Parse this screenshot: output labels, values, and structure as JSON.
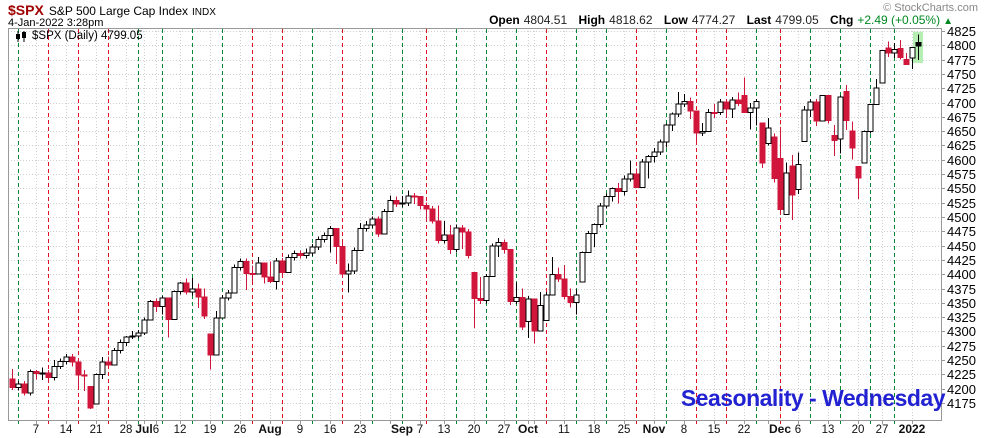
{
  "header": {
    "symbol": "$SPX",
    "title": "S&P 500 Large Cap Index",
    "exchange": "INDX",
    "datetime": "4-Jan-2022 3:28pm",
    "copyright": "© StockCharts.com",
    "quote": {
      "open_label": "Open",
      "open": "4804.51",
      "high_label": "High",
      "high": "4818.62",
      "low_label": "Low",
      "low": "4774.27",
      "last_label": "Last",
      "last": "4799.05",
      "chg_label": "Chg",
      "chg": "+2.49 (+0.05%)",
      "chg_arrow": "▲"
    }
  },
  "legend": {
    "text": "$SPX (Daily) 4799.05"
  },
  "annotation": {
    "text": "Seasonality - Wednesday"
  },
  "colors": {
    "candle_up": "#000000",
    "candle_down": "#d0173b",
    "wed_green": "#008833",
    "wed_red": "#e01022",
    "highlight": "#b6efb4",
    "grid": "#cfcfcf",
    "frame": "#999999",
    "annotation_blue": "#2222d2",
    "chg_green": "#008822",
    "symbol_red": "#a00000"
  },
  "y_axis": {
    "min": 4175,
    "max": 4825,
    "step": 25,
    "labels": [
      "4825",
      "4800",
      "4775",
      "4750",
      "4725",
      "4700",
      "4675",
      "4650",
      "4625",
      "4600",
      "4575",
      "4550",
      "4525",
      "4500",
      "4475",
      "4450",
      "4425",
      "4400",
      "4375",
      "4350",
      "4325",
      "4300",
      "4275",
      "4250",
      "4225",
      "4200",
      "4175"
    ]
  },
  "x_axis": {
    "labels": [
      {
        "t": "7",
        "i": 4
      },
      {
        "t": "14",
        "i": 9
      },
      {
        "t": "21",
        "i": 14
      },
      {
        "t": "28",
        "i": 19
      },
      {
        "t": "Jul",
        "i": 22,
        "b": 1
      },
      {
        "t": "6",
        "i": 24
      },
      {
        "t": "12",
        "i": 28
      },
      {
        "t": "19",
        "i": 33
      },
      {
        "t": "26",
        "i": 38
      },
      {
        "t": "Aug",
        "i": 43,
        "b": 1
      },
      {
        "t": "9",
        "i": 48
      },
      {
        "t": "16",
        "i": 53
      },
      {
        "t": "23",
        "i": 58
      },
      {
        "t": "Sep",
        "i": 65,
        "b": 1
      },
      {
        "t": "7",
        "i": 68
      },
      {
        "t": "13",
        "i": 72
      },
      {
        "t": "20",
        "i": 77
      },
      {
        "t": "27",
        "i": 82
      },
      {
        "t": "Oct",
        "i": 86,
        "b": 1
      },
      {
        "t": "11",
        "i": 92
      },
      {
        "t": "18",
        "i": 97
      },
      {
        "t": "25",
        "i": 102
      },
      {
        "t": "Nov",
        "i": 107,
        "b": 1
      },
      {
        "t": "8",
        "i": 112
      },
      {
        "t": "15",
        "i": 117
      },
      {
        "t": "22",
        "i": 122
      },
      {
        "t": "Dec",
        "i": 128,
        "b": 1
      },
      {
        "t": "6",
        "i": 131
      },
      {
        "t": "13",
        "i": 136
      },
      {
        "t": "20",
        "i": 141
      },
      {
        "t": "27",
        "i": 145
      },
      {
        "t": "2022",
        "i": 150,
        "b": 1
      }
    ]
  },
  "chart_data": {
    "type": "candlestick",
    "symbol": "$SPX",
    "period": "Daily",
    "last": 4799.05,
    "ylim": [
      4145,
      4832
    ],
    "week_gridlines": [
      4,
      9,
      14,
      19,
      22,
      24,
      28,
      33,
      38,
      43,
      48,
      53,
      58,
      63,
      65,
      68,
      72,
      77,
      82,
      86,
      87,
      92,
      97,
      102,
      107,
      112,
      117,
      122,
      126,
      128,
      131,
      136,
      141,
      145,
      150
    ],
    "wednesday_lines": [
      [
        1,
        "g"
      ],
      [
        6,
        "r"
      ],
      [
        11,
        "r"
      ],
      [
        16,
        "r"
      ],
      [
        21,
        "g"
      ],
      [
        25,
        "g"
      ],
      [
        30,
        "g"
      ],
      [
        35,
        "g"
      ],
      [
        40,
        "r"
      ],
      [
        45,
        "r"
      ],
      [
        50,
        "g"
      ],
      [
        55,
        "r"
      ],
      [
        60,
        "g"
      ],
      [
        65,
        "g"
      ],
      [
        69,
        "r"
      ],
      [
        74,
        "g"
      ],
      [
        79,
        "g"
      ],
      [
        84,
        "g"
      ],
      [
        89,
        "r"
      ],
      [
        94,
        "g"
      ],
      [
        99,
        "g"
      ],
      [
        104,
        "r"
      ],
      [
        109,
        "g"
      ],
      [
        114,
        "r"
      ],
      [
        119,
        "r"
      ],
      [
        124,
        "g"
      ],
      [
        128,
        "r"
      ],
      [
        133,
        "g"
      ],
      [
        138,
        "g"
      ],
      [
        143,
        "g"
      ],
      [
        147,
        "g"
      ]
    ],
    "ohlc": [
      [
        "Jun 1",
        4216.5,
        4234.1,
        4197.6,
        4202.0
      ],
      [
        "Jun 2",
        4202.0,
        4213.1,
        4197.0,
        4208.1
      ],
      [
        "Jun 3",
        4208.1,
        4213.1,
        4187.9,
        4192.9
      ],
      [
        "Jun 4",
        4192.9,
        4233.5,
        4187.9,
        4229.9
      ],
      [
        "Jun 7",
        4229.9,
        4232.3,
        4215.7,
        4226.5
      ],
      [
        "Jun 8",
        4226.5,
        4236.7,
        4215.0,
        4227.3
      ],
      [
        "Jun 9",
        4227.3,
        4232.3,
        4214.6,
        4219.6
      ],
      [
        "Jun 10",
        4219.6,
        4249.7,
        4214.6,
        4239.2
      ],
      [
        "Jun 11",
        4239.2,
        4252.4,
        4234.2,
        4247.4
      ],
      [
        "Jun 14",
        4247.4,
        4260.2,
        4242.4,
        4255.2
      ],
      [
        "Jun 15",
        4255.2,
        4260.2,
        4238.4,
        4246.6
      ],
      [
        "Jun 16",
        4246.6,
        4251.9,
        4202.5,
        4223.7
      ],
      [
        "Jun 17",
        4223.7,
        4232.3,
        4196.1,
        4221.9
      ],
      [
        "Jun 18",
        4204.0,
        4204.0,
        4164.4,
        4166.5
      ],
      [
        "Jun 21",
        4173.0,
        4226.2,
        4173.0,
        4224.8
      ],
      [
        "Jun 22",
        4224.8,
        4255.8,
        4217.3,
        4246.4
      ],
      [
        "Jun 23",
        4246.4,
        4256.6,
        4241.4,
        4241.8
      ],
      [
        "Jun 24",
        4241.8,
        4271.3,
        4241.8,
        4266.5
      ],
      [
        "Jun 25",
        4266.5,
        4286.1,
        4261.5,
        4280.7
      ],
      [
        "Jun 28",
        4280.7,
        4292.1,
        4274.7,
        4290.6
      ],
      [
        "Jun 29",
        4290.6,
        4300.5,
        4287.0,
        4291.8
      ],
      [
        "Jun 30",
        4291.8,
        4302.4,
        4287.9,
        4297.5
      ],
      [
        "Jul 1",
        4297.5,
        4324.0,
        4293.6,
        4319.9
      ],
      [
        "Jul 2",
        4319.9,
        4355.4,
        4319.9,
        4352.3
      ],
      [
        "Jul 6",
        4352.3,
        4357.3,
        4334.0,
        4343.5
      ],
      [
        "Jul 7",
        4343.5,
        4361.9,
        4329.8,
        4358.1
      ],
      [
        "Jul 8",
        4358.1,
        4358.1,
        4289.4,
        4320.8
      ],
      [
        "Jul 9",
        4320.8,
        4371.6,
        4320.8,
        4369.6
      ],
      [
        "Jul 12",
        4369.6,
        4386.7,
        4364.6,
        4384.6
      ],
      [
        "Jul 13",
        4384.6,
        4392.4,
        4364.2,
        4369.2
      ],
      [
        "Jul 14",
        4369.2,
        4393.7,
        4362.5,
        4374.3
      ],
      [
        "Jul 15",
        4374.3,
        4383.4,
        4340.7,
        4360.0
      ],
      [
        "Jul 16",
        4360.0,
        4375.1,
        4322.2,
        4327.2
      ],
      [
        "Jul 19",
        4296.0,
        4296.0,
        4233.1,
        4258.5
      ],
      [
        "Jul 20",
        4258.5,
        4335.7,
        4258.5,
        4323.1
      ],
      [
        "Jul 21",
        4323.1,
        4363.7,
        4323.1,
        4358.7
      ],
      [
        "Jul 22",
        4358.7,
        4372.5,
        4353.7,
        4367.5
      ],
      [
        "Jul 23",
        4367.5,
        4416.8,
        4367.5,
        4411.8
      ],
      [
        "Jul 26",
        4411.8,
        4427.3,
        4406.8,
        4422.3
      ],
      [
        "Jul 27",
        4422.3,
        4427.3,
        4372.5,
        4401.5
      ],
      [
        "Jul 28",
        4401.5,
        4415.5,
        4387.0,
        4400.6
      ],
      [
        "Jul 29",
        4400.6,
        4429.8,
        4400.6,
        4419.2
      ],
      [
        "Jul 30",
        4419.2,
        4419.2,
        4383.5,
        4395.3
      ],
      [
        "Aug 2",
        4395.3,
        4422.2,
        4384.8,
        4387.2
      ],
      [
        "Aug 3",
        4387.2,
        4428.2,
        4373.0,
        4423.2
      ],
      [
        "Aug 4",
        4423.2,
        4428.2,
        4397.7,
        4402.7
      ],
      [
        "Aug 5",
        4402.7,
        4434.1,
        4402.7,
        4429.1
      ],
      [
        "Aug 6",
        4429.1,
        4441.5,
        4424.1,
        4436.5
      ],
      [
        "Aug 9",
        4436.5,
        4441.5,
        4427.4,
        4432.4
      ],
      [
        "Aug 10",
        4432.4,
        4445.2,
        4427.4,
        4436.8
      ],
      [
        "Aug 11",
        4436.8,
        4452.7,
        4431.8,
        4447.7
      ],
      [
        "Aug 12",
        4447.7,
        4465.8,
        4442.7,
        4460.8
      ],
      [
        "Aug 13",
        4460.8,
        4473.0,
        4455.8,
        4468.0
      ],
      [
        "Aug 16",
        4468.0,
        4484.7,
        4437.7,
        4479.7
      ],
      [
        "Aug 17",
        4479.7,
        4479.7,
        4417.6,
        4448.1
      ],
      [
        "Aug 18",
        4448.1,
        4454.3,
        4395.3,
        4400.3
      ],
      [
        "Aug 19",
        4400.3,
        4418.6,
        4367.7,
        4405.8
      ],
      [
        "Aug 20",
        4405.8,
        4446.7,
        4400.8,
        4441.7
      ],
      [
        "Aug 23",
        4441.7,
        4489.9,
        4441.7,
        4479.5
      ],
      [
        "Aug 24",
        4479.5,
        4492.8,
        4474.5,
        4486.2
      ],
      [
        "Aug 25",
        4486.2,
        4501.2,
        4481.2,
        4496.2
      ],
      [
        "Aug 26",
        4496.2,
        4501.2,
        4465.0,
        4470.0
      ],
      [
        "Aug 27",
        4470.0,
        4514.4,
        4470.0,
        4509.4
      ],
      [
        "Aug 30",
        4509.4,
        4537.4,
        4509.4,
        4528.8
      ],
      [
        "Aug 31",
        4528.8,
        4535.9,
        4517.7,
        4522.7
      ],
      [
        "Sep 1",
        4522.7,
        4537.1,
        4517.7,
        4524.1
      ],
      [
        "Sep 2",
        4524.1,
        4545.9,
        4519.1,
        4537.0
      ],
      [
        "Sep 3",
        4537.0,
        4542.0,
        4522.4,
        4535.4
      ],
      [
        "Sep 7",
        4535.4,
        4535.4,
        4513.0,
        4520.0
      ],
      [
        "Sep 8",
        4520.0,
        4525.0,
        4493.9,
        4514.1
      ],
      [
        "Sep 9",
        4514.1,
        4519.1,
        4488.3,
        4493.3
      ],
      [
        "Sep 10",
        4493.3,
        4520.5,
        4453.6,
        4458.6
      ],
      [
        "Sep 13",
        4458.6,
        4492.9,
        4453.6,
        4468.7
      ],
      [
        "Sep 14",
        4468.7,
        4485.7,
        4435.5,
        4443.1
      ],
      [
        "Sep 15",
        4443.1,
        4486.9,
        4438.1,
        4480.7
      ],
      [
        "Sep 16",
        4480.7,
        4485.7,
        4443.8,
        4473.8
      ],
      [
        "Sep 17",
        4473.8,
        4478.8,
        4427.8,
        4433.0
      ],
      [
        "Sep 20",
        4403.0,
        4403.0,
        4305.9,
        4357.7
      ],
      [
        "Sep 21",
        4357.7,
        4394.8,
        4347.8,
        4354.2
      ],
      [
        "Sep 22",
        4354.2,
        4400.6,
        4349.2,
        4395.6
      ],
      [
        "Sep 23",
        4395.6,
        4454.0,
        4395.6,
        4449.0
      ],
      [
        "Sep 24",
        4449.0,
        4463.1,
        4430.3,
        4455.5
      ],
      [
        "Sep 27",
        4455.5,
        4460.5,
        4436.2,
        4443.1
      ],
      [
        "Sep 28",
        4443.1,
        4443.1,
        4346.3,
        4352.6
      ],
      [
        "Sep 29",
        4352.6,
        4385.6,
        4347.6,
        4359.5
      ],
      [
        "Sep 30",
        4359.5,
        4375.2,
        4302.5,
        4307.5
      ],
      [
        "Oct 1",
        4317.2,
        4362.0,
        4288.5,
        4357.0
      ],
      [
        "Oct 4",
        4357.0,
        4357.0,
        4278.9,
        4300.5
      ],
      [
        "Oct 5",
        4300.5,
        4369.2,
        4300.5,
        4345.7
      ],
      [
        "Oct 6",
        4319.5,
        4368.6,
        4319.5,
        4363.6
      ],
      [
        "Oct 7",
        4363.6,
        4429.9,
        4363.6,
        4399.8
      ],
      [
        "Oct 8",
        4399.8,
        4412.0,
        4386.2,
        4391.3
      ],
      [
        "Oct 11",
        4391.3,
        4415.9,
        4356.2,
        4361.2
      ],
      [
        "Oct 12",
        4361.2,
        4374.9,
        4342.1,
        4350.7
      ],
      [
        "Oct 13",
        4350.7,
        4372.9,
        4329.9,
        4363.8
      ],
      [
        "Oct 14",
        4386.0,
        4439.7,
        4386.0,
        4438.3
      ],
      [
        "Oct 15",
        4438.3,
        4475.8,
        4438.3,
        4471.4
      ],
      [
        "Oct 18",
        4471.4,
        4488.8,
        4447.5,
        4486.5
      ],
      [
        "Oct 19",
        4486.5,
        4524.4,
        4481.5,
        4519.6
      ],
      [
        "Oct 20",
        4519.6,
        4540.9,
        4514.6,
        4536.2
      ],
      [
        "Oct 21",
        4536.2,
        4551.4,
        4526.9,
        4549.8
      ],
      [
        "Oct 22",
        4549.8,
        4559.7,
        4524.0,
        4544.9
      ],
      [
        "Oct 25",
        4544.9,
        4572.6,
        4537.4,
        4566.5
      ],
      [
        "Oct 26",
        4566.5,
        4598.5,
        4562.3,
        4574.8
      ],
      [
        "Oct 27",
        4574.8,
        4584.6,
        4551.7,
        4551.7
      ],
      [
        "Oct 28",
        4551.7,
        4601.4,
        4551.7,
        4596.4
      ],
      [
        "Oct 29",
        4596.4,
        4608.1,
        4567.6,
        4605.4
      ],
      [
        "Nov 1",
        4605.4,
        4620.3,
        4595.1,
        4613.7
      ],
      [
        "Nov 2",
        4613.7,
        4635.2,
        4608.7,
        4630.7
      ],
      [
        "Nov 3",
        4630.7,
        4663.5,
        4621.2,
        4660.6
      ],
      [
        "Nov 4",
        4660.6,
        4683.0,
        4650.3,
        4680.1
      ],
      [
        "Nov 5",
        4680.1,
        4718.5,
        4675.1,
        4697.5
      ],
      [
        "Nov 8",
        4697.5,
        4714.9,
        4692.5,
        4701.7
      ],
      [
        "Nov 9",
        4701.7,
        4708.5,
        4670.9,
        4685.3
      ],
      [
        "Nov 10",
        4685.3,
        4685.3,
        4630.9,
        4646.7
      ],
      [
        "Nov 11",
        4646.7,
        4664.6,
        4641.7,
        4649.3
      ],
      [
        "Nov 12",
        4649.3,
        4688.5,
        4649.3,
        4682.9
      ],
      [
        "Nov 15",
        4682.9,
        4697.4,
        4672.9,
        4682.8
      ],
      [
        "Nov 16",
        4682.8,
        4706.0,
        4677.8,
        4700.9
      ],
      [
        "Nov 17",
        4700.9,
        4705.9,
        4672.8,
        4688.7
      ],
      [
        "Nov 18",
        4688.7,
        4709.5,
        4672.6,
        4704.5
      ],
      [
        "Nov 19",
        4704.5,
        4717.8,
        4694.2,
        4698.0
      ],
      [
        "Nov 22",
        4712.0,
        4743.8,
        4682.2,
        4682.9
      ],
      [
        "Nov 23",
        4682.9,
        4699.4,
        4652.7,
        4690.7
      ],
      [
        "Nov 24",
        4690.7,
        4706.5,
        4659.9,
        4701.5
      ],
      [
        "Nov 26",
        4664.0,
        4664.0,
        4585.4,
        4594.6
      ],
      [
        "Nov 29",
        4628.0,
        4672.9,
        4625.3,
        4655.3
      ],
      [
        "Nov 30",
        4640.0,
        4646.0,
        4560.0,
        4567.0
      ],
      [
        "Dec 1",
        4602.0,
        4652.9,
        4510.3,
        4513.0
      ],
      [
        "Dec 2",
        4504.7,
        4595.3,
        4504.7,
        4577.1
      ],
      [
        "Dec 3",
        4589.5,
        4608.0,
        4495.1,
        4538.4
      ],
      [
        "Dec 6",
        4548.3,
        4612.6,
        4540.5,
        4591.7
      ],
      [
        "Dec 7",
        4631.8,
        4694.0,
        4631.8,
        4686.8
      ],
      [
        "Dec 8",
        4686.8,
        4705.1,
        4674.5,
        4701.2
      ],
      [
        "Dec 9",
        4701.2,
        4706.2,
        4659.4,
        4667.5
      ],
      [
        "Dec 10",
        4667.5,
        4713.6,
        4667.5,
        4712.0
      ],
      [
        "Dec 13",
        4712.0,
        4713.0,
        4663.0,
        4669.0
      ],
      [
        "Dec 14",
        4642.0,
        4660.5,
        4606.5,
        4634.1
      ],
      [
        "Dec 15",
        4636.0,
        4712.6,
        4611.2,
        4709.9
      ],
      [
        "Dec 16",
        4719.0,
        4731.0,
        4651.9,
        4668.7
      ],
      [
        "Dec 17",
        4650.0,
        4666.6,
        4600.2,
        4620.6
      ],
      [
        "Dec 20",
        4588.0,
        4588.0,
        4531.1,
        4568.0
      ],
      [
        "Dec 21",
        4594.0,
        4651.1,
        4594.0,
        4649.2
      ],
      [
        "Dec 22",
        4649.2,
        4697.7,
        4645.5,
        4696.6
      ],
      [
        "Dec 23",
        4696.6,
        4740.7,
        4696.6,
        4725.8
      ],
      [
        "Dec 27",
        4734.0,
        4791.5,
        4734.0,
        4791.2
      ],
      [
        "Dec 28",
        4795.5,
        4807.0,
        4780.0,
        4786.4
      ],
      [
        "Dec 29",
        4786.4,
        4804.1,
        4778.1,
        4793.1
      ],
      [
        "Dec 30",
        4794.2,
        4808.9,
        4775.3,
        4778.7
      ],
      [
        "Dec 31",
        4775.2,
        4786.8,
        4765.8,
        4766.2
      ],
      [
        "Jan 3",
        4778.1,
        4796.6,
        4758.2,
        4796.6
      ],
      [
        "Jan 4",
        4804.5,
        4818.6,
        4774.3,
        4799.1
      ]
    ]
  }
}
